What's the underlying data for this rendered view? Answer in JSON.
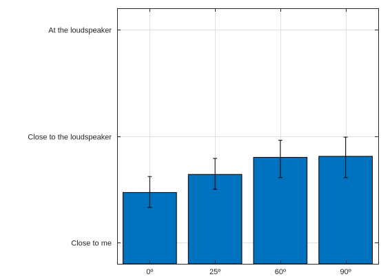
{
  "chart_data": {
    "type": "bar",
    "categories": [
      "0º",
      "25º",
      "60º",
      "90º"
    ],
    "values": [
      1.47,
      1.64,
      1.8,
      1.81
    ],
    "error_bars": {
      "lower": [
        1.33,
        1.5,
        1.61,
        1.61
      ],
      "upper": [
        1.62,
        1.79,
        1.96,
        1.99
      ]
    },
    "y_ticks": [
      {
        "value": 1,
        "label": "Close to me"
      },
      {
        "value": 2,
        "label": "Close to the loudspeaker"
      },
      {
        "value": 3,
        "label": "At the loudspeaker"
      }
    ],
    "ylim": [
      0.8,
      3.2
    ],
    "grid": true,
    "title": "",
    "xlabel": "",
    "ylabel": "",
    "colors": {
      "bar": "#0072BD",
      "bar_edge": "#000000",
      "grid": "#dfdfdf",
      "axis": "#262626",
      "error_bar": "#000000"
    }
  }
}
